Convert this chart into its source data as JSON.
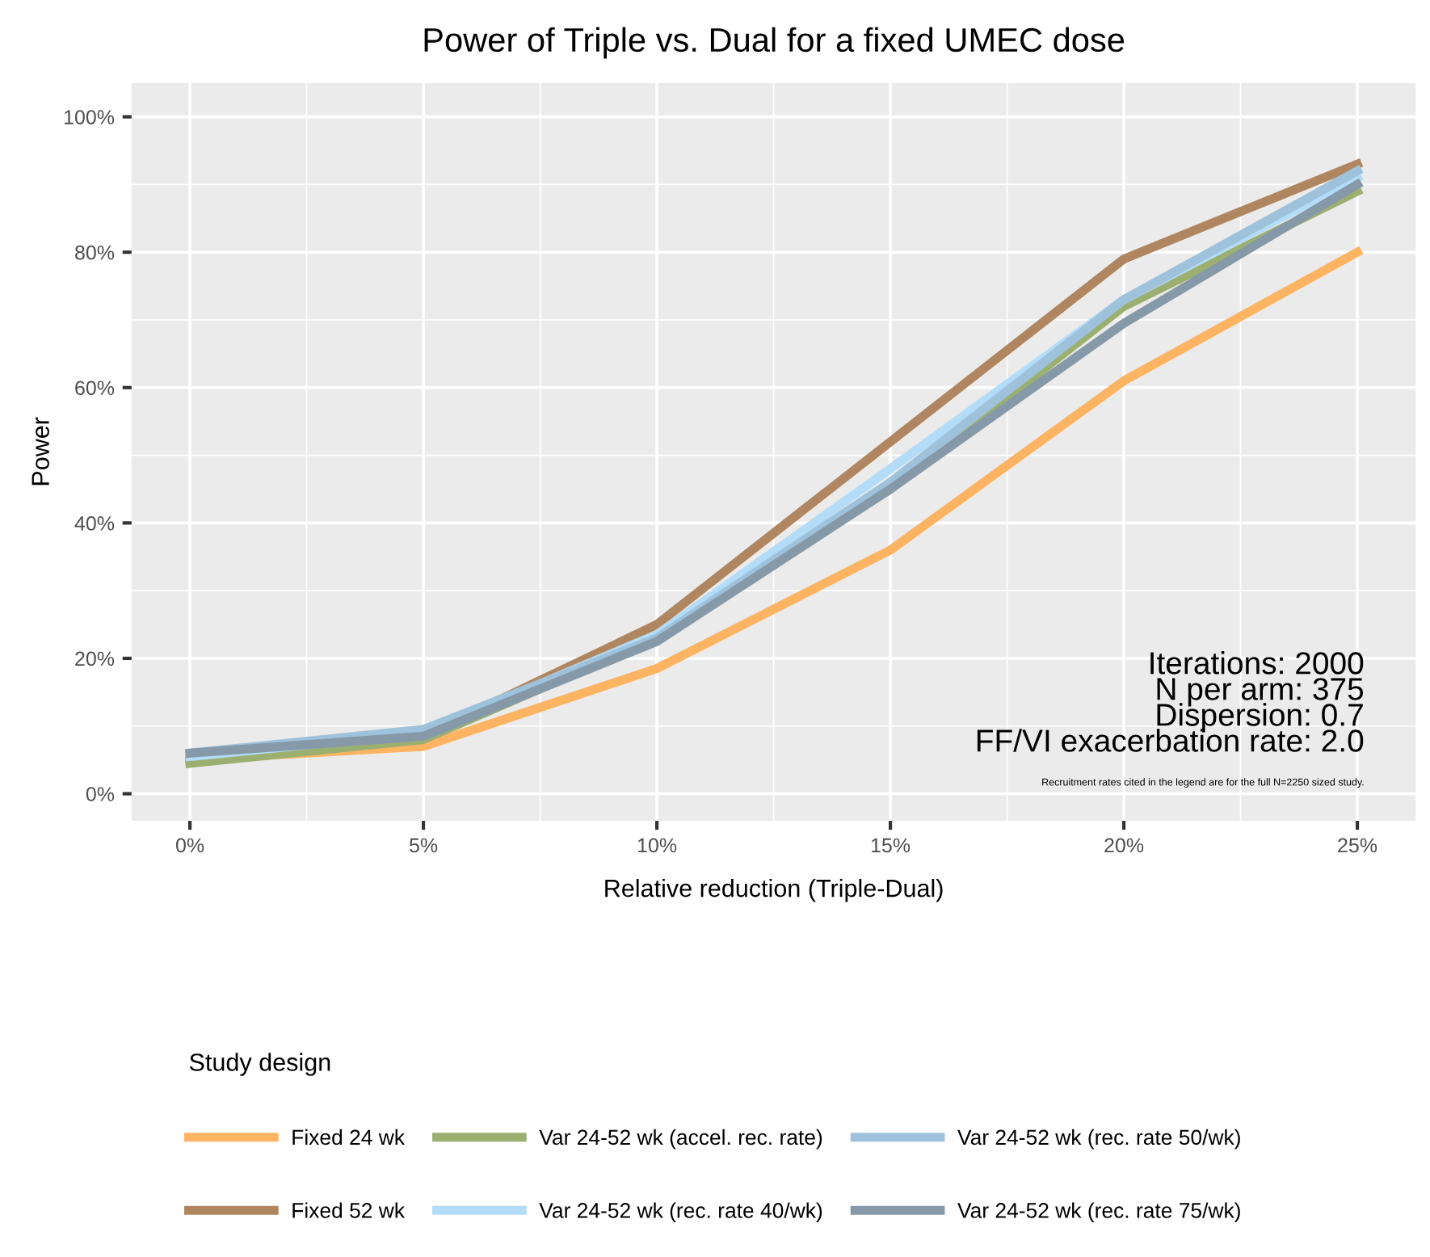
{
  "chart_data": {
    "type": "line",
    "title": "Power of Triple vs. Dual for a fixed UMEC dose",
    "xlabel": "Relative reduction (Triple-Dual)",
    "ylabel": "Power",
    "legend_title": "Study design",
    "x": [
      0,
      5,
      10,
      15,
      20,
      25
    ],
    "series": [
      {
        "name": "Fixed 24 wk",
        "color": "#fdb462",
        "values": [
          5,
          7,
          18.5,
          36,
          61,
          80
        ]
      },
      {
        "name": "Fixed 52 wk",
        "color": "#b08660",
        "values": [
          5,
          8.5,
          25,
          52,
          79,
          93
        ]
      },
      {
        "name": "Var 24-52 wk (accel. rec. rate)",
        "color": "#9bb070",
        "values": [
          4.5,
          8,
          23,
          45,
          72,
          89
        ]
      },
      {
        "name": "Var 24-52 wk (rec. rate 40/wk)",
        "color": "#b3dcf8",
        "values": [
          5.5,
          9,
          23.5,
          48,
          73,
          91
        ]
      },
      {
        "name": "Var 24-52 wk (rec. rate 50/wk)",
        "color": "#9fc2dc",
        "values": [
          6,
          9.5,
          23,
          46,
          73,
          92
        ]
      },
      {
        "name": "Var 24-52 wk (rec. rate 75/wk)",
        "color": "#8699a8",
        "values": [
          6,
          8.5,
          22.5,
          45,
          69.5,
          90
        ]
      }
    ],
    "xlim": [
      -1.25,
      26.25
    ],
    "ylim": [
      -4,
      105
    ],
    "xticks": [
      {
        "value": 0,
        "label": "0%"
      },
      {
        "value": 5,
        "label": "5%"
      },
      {
        "value": 10,
        "label": "10%"
      },
      {
        "value": 15,
        "label": "15%"
      },
      {
        "value": 20,
        "label": "20%"
      },
      {
        "value": 25,
        "label": "25%"
      }
    ],
    "yticks": [
      {
        "value": 0,
        "label": "0%"
      },
      {
        "value": 20,
        "label": "20%"
      },
      {
        "value": 40,
        "label": "40%"
      },
      {
        "value": 60,
        "label": "60%"
      },
      {
        "value": 80,
        "label": "80%"
      },
      {
        "value": 100,
        "label": "100%"
      }
    ],
    "grid": true,
    "legend": "bottom",
    "marker": "none",
    "line_style": "solid",
    "annotations": [
      "Iterations: 2000\nN per arm: 375\nDispersion: 0.7\nFF/VI exacerbation rate: 2.0",
      "Recruitment rates cited in the legend are for the full N=2250 sized study."
    ]
  }
}
